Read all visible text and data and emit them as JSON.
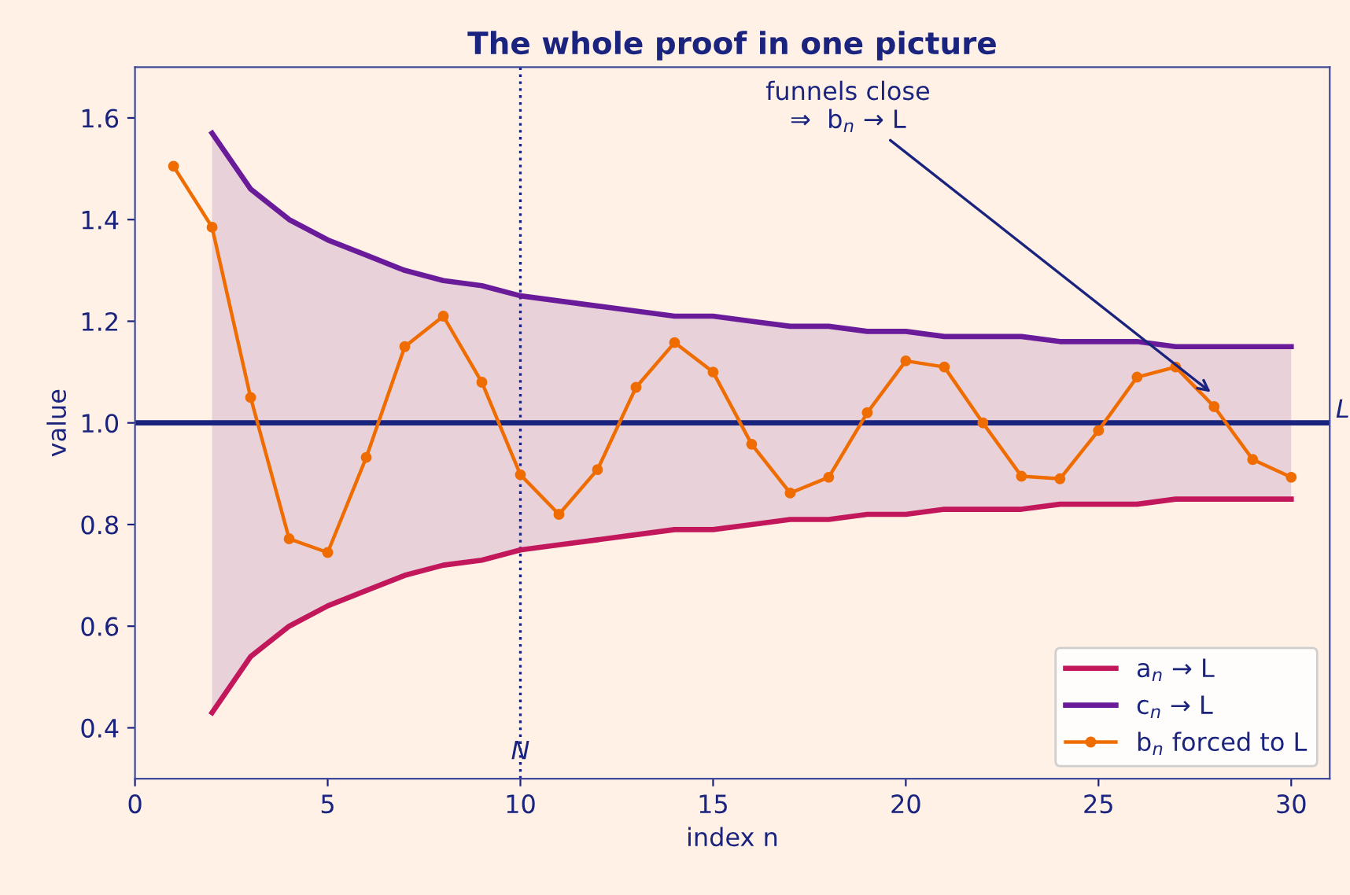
{
  "chart_data": {
    "type": "line",
    "title": "The whole proof in one picture",
    "xlabel": "index n",
    "ylabel": "value",
    "x": [
      1,
      2,
      3,
      4,
      5,
      6,
      7,
      8,
      9,
      10,
      11,
      12,
      13,
      14,
      15,
      16,
      17,
      18,
      19,
      20,
      21,
      22,
      23,
      24,
      25,
      26,
      27,
      28,
      29,
      30
    ],
    "series": [
      {
        "name": "a$_{n}$ → L",
        "color": "#c2185b",
        "marker": "none",
        "values": [
          null,
          0.43,
          0.54,
          0.6,
          0.64,
          0.67,
          0.7,
          0.72,
          0.73,
          0.75,
          0.76,
          0.77,
          0.78,
          0.79,
          0.79,
          0.8,
          0.81,
          0.81,
          0.82,
          0.82,
          0.83,
          0.83,
          0.83,
          0.84,
          0.84,
          0.84,
          0.85,
          0.85,
          0.85,
          0.85
        ]
      },
      {
        "name": "c$_{n}$ → L",
        "color": "#6a1b9a",
        "marker": "none",
        "values": [
          null,
          1.57,
          1.46,
          1.4,
          1.36,
          1.33,
          1.3,
          1.28,
          1.27,
          1.25,
          1.24,
          1.23,
          1.22,
          1.21,
          1.21,
          1.2,
          1.19,
          1.19,
          1.18,
          1.18,
          1.17,
          1.17,
          1.17,
          1.16,
          1.16,
          1.16,
          1.15,
          1.15,
          1.15,
          1.15
        ],
        "lower": [
          null,
          0.43,
          0.54,
          0.6,
          0.64,
          0.67,
          0.7,
          0.72,
          0.73,
          0.75,
          0.76,
          0.77,
          0.78,
          0.79,
          0.79,
          0.8,
          0.81,
          0.81,
          0.82,
          0.82,
          0.83,
          0.83,
          0.83,
          0.84,
          0.84,
          0.84,
          0.85,
          0.85,
          0.85,
          0.85
        ],
        "upper": [
          null,
          1.57,
          1.46,
          1.4,
          1.36,
          1.33,
          1.3,
          1.28,
          1.27,
          1.25,
          1.24,
          1.23,
          1.22,
          1.21,
          1.21,
          1.2,
          1.19,
          1.19,
          1.18,
          1.18,
          1.17,
          1.17,
          1.17,
          1.16,
          1.16,
          1.16,
          1.15,
          1.15,
          1.15,
          1.15
        ]
      },
      {
        "name": "b$_{n}$ forced to L",
        "color": "#ef6c00",
        "marker": "circle",
        "values": [
          1.505,
          1.385,
          1.05,
          0.772,
          0.745,
          0.932,
          1.15,
          1.21,
          1.08,
          0.898,
          0.82,
          0.908,
          1.07,
          1.158,
          1.1,
          0.958,
          0.862,
          0.893,
          1.02,
          1.122,
          1.11,
          1.0,
          0.895,
          0.89,
          0.985,
          1.09,
          1.11,
          1.032,
          0.928,
          0.893
        ]
      }
    ],
    "ref_lines": [
      {
        "axis": "y",
        "value": 1.0,
        "label": "L",
        "color": "#1a237e",
        "line_style": "solid"
      },
      {
        "axis": "x",
        "value": 10,
        "label": "N",
        "color": "#1a237e",
        "line_style": "dotted"
      }
    ],
    "annotations": [
      {
        "text": "funnels close\n⇒  b$_{n}$ → L",
        "x": 28,
        "y": 1.055
      }
    ],
    "xlim": [
      0,
      31
    ],
    "ylim": [
      0.3,
      1.7
    ],
    "xticks": [
      0,
      5,
      10,
      15,
      20,
      25,
      30
    ],
    "yticks": [
      0.4,
      0.6,
      0.8,
      {
        "value": 1.0,
        "label": "1.0"
      },
      1.2,
      1.4,
      1.6
    ],
    "grid": false,
    "legend": "bottom right"
  }
}
